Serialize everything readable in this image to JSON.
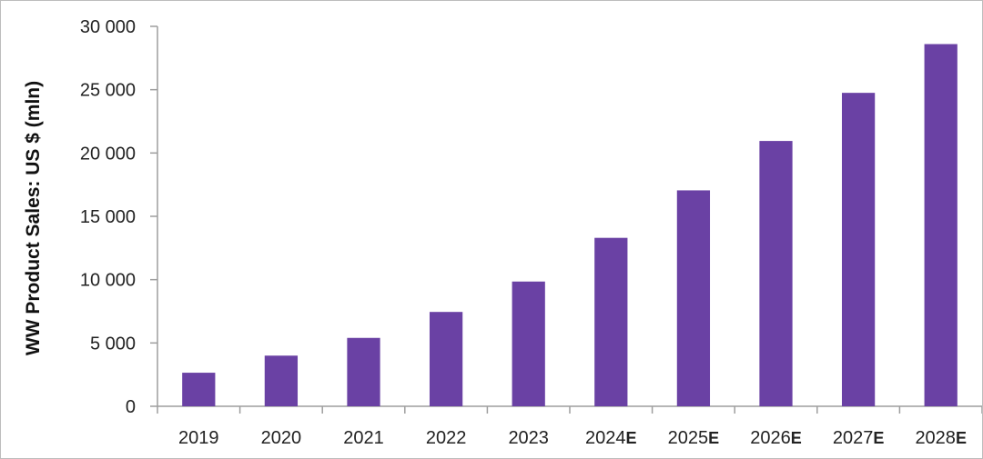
{
  "chart_data": {
    "type": "bar",
    "title": "",
    "xlabel": "",
    "ylabel": "WW Product Sales: US $ (mln)",
    "categories": [
      "2019",
      "2020",
      "2021",
      "2022",
      "2023",
      "2024E",
      "2025E",
      "2026E",
      "2027E",
      "2028E"
    ],
    "category_parts": [
      {
        "year": "2019",
        "suffix": ""
      },
      {
        "year": "2020",
        "suffix": ""
      },
      {
        "year": "2021",
        "suffix": ""
      },
      {
        "year": "2022",
        "suffix": ""
      },
      {
        "year": "2023",
        "suffix": ""
      },
      {
        "year": "2024",
        "suffix": "E"
      },
      {
        "year": "2025",
        "suffix": "E"
      },
      {
        "year": "2026",
        "suffix": "E"
      },
      {
        "year": "2027",
        "suffix": "E"
      },
      {
        "year": "2028",
        "suffix": "E"
      }
    ],
    "values": [
      2650,
      4000,
      5400,
      7450,
      9850,
      13300,
      17050,
      20950,
      24750,
      28600
    ],
    "ylim": [
      0,
      30000
    ],
    "yticks": [
      0,
      5000,
      10000,
      15000,
      20000,
      25000,
      30000
    ],
    "ytick_labels": [
      "0",
      "5 000",
      "10 000",
      "15 000",
      "20 000",
      "25 000",
      "30 000"
    ],
    "grid": false,
    "legend": "none",
    "bar_color": "#6a41a4",
    "axis_color": "#9e9e9e"
  }
}
